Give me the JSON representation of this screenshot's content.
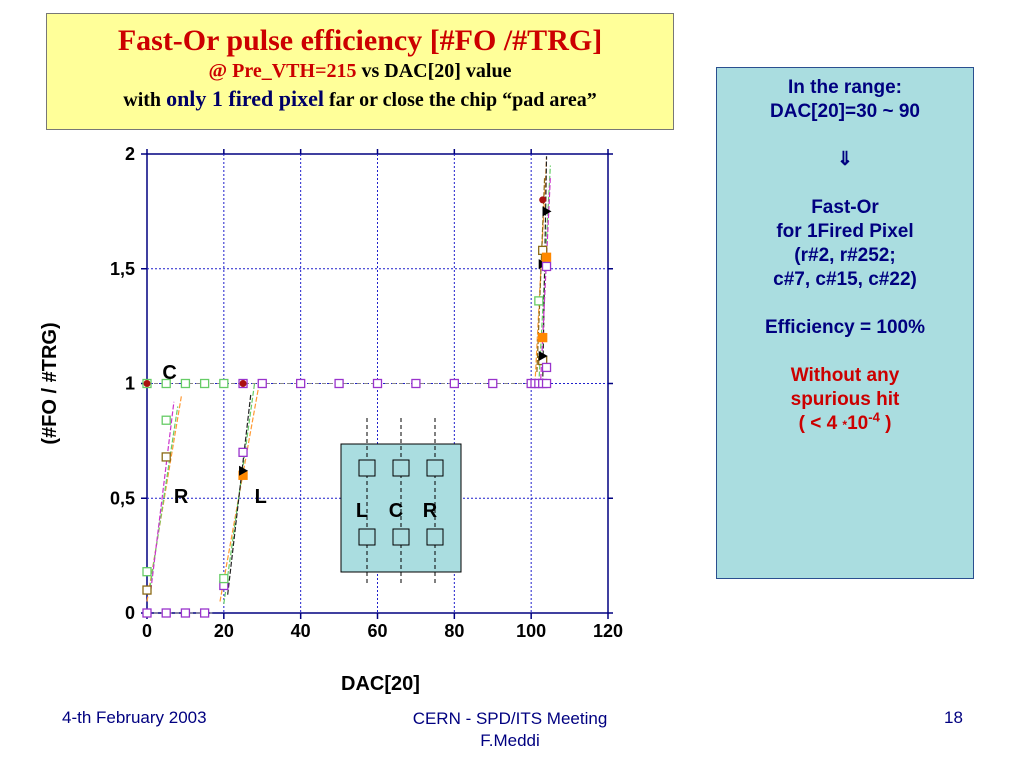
{
  "slide": {
    "title_line1": "Fast-Or pulse efficiency  [#FO /#TRG]",
    "title_line2_red": "@ Pre_VTH=215",
    "title_line2_rest": " vs DAC[20] value",
    "title_line3_with": "with ",
    "title_line3_emph": "only 1 fired pixel",
    "title_line3_rest": " far or close the chip “pad area”"
  },
  "info_box": {
    "line1": "In the range:",
    "line2": "DAC[20]=30 ~ 90",
    "arrow": "⇓",
    "line3": "Fast-Or",
    "line4": "for 1Fired Pixel",
    "line5": "(r#2, r#252;",
    "line6": "c#7, c#15, c#22)",
    "line7": "Efficiency = 100%",
    "line8": "Without any",
    "line9": "spurious hit",
    "line10_pre": "( < 4 ",
    "line10_dot": "*",
    "line10_base": "10",
    "line10_exp": "-4",
    "line10_post": " )"
  },
  "footer": {
    "date": "4-th February 2003",
    "meeting": "CERN - SPD/ITS Meeting",
    "author": "F.Meddi",
    "page": "18"
  },
  "chart_data": {
    "type": "scatter",
    "xlabel": "DAC[20]",
    "ylabel": "(#FO / #TRG)",
    "xlim": [
      0,
      120
    ],
    "ylim": [
      0,
      2
    ],
    "xticks": [
      0,
      20,
      40,
      60,
      80,
      100,
      120
    ],
    "xtick_labels": [
      "0",
      "20",
      "40",
      "60",
      "80",
      "100",
      "120"
    ],
    "yticks": [
      0,
      0.5,
      1,
      1.5,
      2
    ],
    "ytick_labels": [
      "0",
      "0,5",
      "1",
      "1,5",
      "2"
    ],
    "grid": true,
    "colors": {
      "axis": "#000080",
      "grid": "#1f1fcc",
      "plateau": "#9933cc",
      "green": "#66cc66",
      "orange": "#ff8800",
      "brown": "#8b6914",
      "red": "#aa1111"
    },
    "annotations": [
      {
        "text": "C",
        "x": 4,
        "y": 1.02
      },
      {
        "text": "R",
        "x": 7,
        "y": 0.48
      },
      {
        "text": "L",
        "x": 28,
        "y": 0.48
      }
    ],
    "plateau_points": {
      "x": [
        0,
        5,
        10,
        15,
        20,
        25,
        30,
        40,
        50,
        60,
        70,
        80,
        90,
        100,
        101,
        102,
        103,
        104
      ],
      "y": [
        1,
        1,
        1,
        1,
        1,
        1,
        1,
        1,
        1,
        1,
        1,
        1,
        1,
        1,
        1,
        1,
        1,
        1
      ]
    },
    "zero_points": {
      "x": [
        0,
        5,
        10,
        15
      ],
      "y": [
        0,
        0,
        0,
        0
      ]
    },
    "transition_points": [
      {
        "x": 0,
        "y": 0.1,
        "marker": "brown-square"
      },
      {
        "x": 0,
        "y": 0.18,
        "marker": "green-square"
      },
      {
        "x": 5,
        "y": 0.68,
        "marker": "brown-square"
      },
      {
        "x": 5,
        "y": 0.84,
        "marker": "green-square"
      },
      {
        "x": 20,
        "y": 0.12,
        "marker": "purple-square"
      },
      {
        "x": 20,
        "y": 0.15,
        "marker": "green-square"
      },
      {
        "x": 25,
        "y": 0.6,
        "marker": "orange-square"
      },
      {
        "x": 25,
        "y": 0.62,
        "marker": "black-triangle"
      },
      {
        "x": 25,
        "y": 0.7,
        "marker": "purple-square"
      },
      {
        "x": 0,
        "y": 1,
        "marker": "red-dot"
      },
      {
        "x": 25,
        "y": 1,
        "marker": "red-dot"
      },
      {
        "x": 103,
        "y": 1.1,
        "marker": "brown-square"
      },
      {
        "x": 103,
        "y": 1.12,
        "marker": "black-triangle"
      },
      {
        "x": 103,
        "y": 1.2,
        "marker": "orange-square"
      },
      {
        "x": 104,
        "y": 1.07,
        "marker": "purple-square"
      },
      {
        "x": 102,
        "y": 1.36,
        "marker": "green-square"
      },
      {
        "x": 103,
        "y": 1.52,
        "marker": "black-triangle"
      },
      {
        "x": 103,
        "y": 1.58,
        "marker": "brown-square"
      },
      {
        "x": 104,
        "y": 1.55,
        "marker": "orange-square"
      },
      {
        "x": 104,
        "y": 1.51,
        "marker": "purple-square"
      },
      {
        "x": 104,
        "y": 1.75,
        "marker": "black-triangle"
      },
      {
        "x": 103,
        "y": 1.8,
        "marker": "red-dot"
      }
    ],
    "inset": {
      "labels": [
        "L",
        "C",
        "R"
      ]
    }
  }
}
